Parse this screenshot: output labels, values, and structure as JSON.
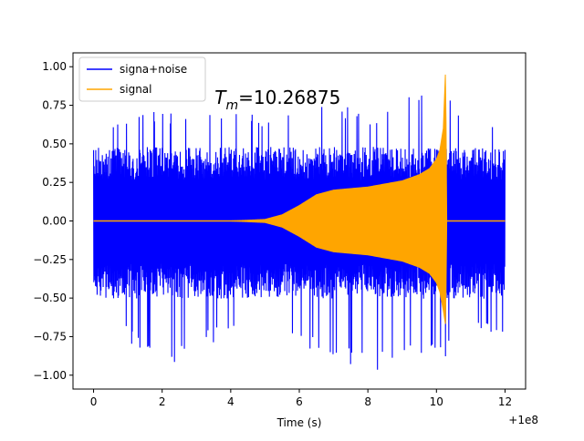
{
  "chart_data": {
    "type": "line",
    "title": "",
    "xlabel": "Time (s)",
    "ylabel": "",
    "x_offset_label": "+1e8",
    "xlim": [
      -0.6,
      12.6
    ],
    "ylim": [
      -1.09,
      1.09
    ],
    "x_ticks": [
      0,
      2,
      4,
      6,
      8,
      10,
      12
    ],
    "x_tick_labels": [
      "0",
      "2",
      "4",
      "6",
      "8",
      "10",
      "12"
    ],
    "y_ticks": [
      -1.0,
      -0.75,
      -0.5,
      -0.25,
      0.0,
      0.25,
      0.5,
      0.75,
      1.0
    ],
    "y_tick_labels": [
      "−1.00",
      "−0.75",
      "−0.50",
      "−0.25",
      "0.00",
      "0.25",
      "0.50",
      "0.75",
      "1.00"
    ],
    "grid": false,
    "legend_position": "upper-left",
    "annotation": {
      "symbol": "T",
      "subscript": "m",
      "value": "=10.26875",
      "x": 3.0,
      "y": 0.8
    },
    "series": [
      {
        "name": "signa+noise",
        "color": "#0000ff",
        "kind": "noise",
        "x_start": 0,
        "x_end": 12,
        "envelope": {
          "x": [
            0,
            1,
            2,
            3,
            4,
            5,
            6,
            7,
            8,
            9,
            10,
            11,
            12
          ],
          "upper": [
            0.63,
            0.68,
            0.75,
            0.69,
            0.74,
            0.67,
            0.82,
            0.78,
            0.73,
            0.79,
            0.86,
            0.73,
            0.7
          ],
          "lower": [
            -0.86,
            -0.79,
            -0.98,
            -0.82,
            -0.76,
            -0.78,
            -0.86,
            -0.88,
            -1.0,
            -0.9,
            -0.92,
            -0.78,
            -0.73
          ]
        },
        "bulk": 0.48
      },
      {
        "name": "signal",
        "color": "#ffa500",
        "kind": "chirp",
        "x": [
          0,
          4.0,
          5.0,
          5.5,
          6.0,
          6.5,
          7.0,
          8.0,
          9.0,
          9.5,
          9.8,
          10.0,
          10.1,
          10.2,
          10.26875,
          10.3,
          12.0
        ],
        "upper": [
          0,
          0.0,
          0.01,
          0.04,
          0.1,
          0.17,
          0.2,
          0.22,
          0.26,
          0.3,
          0.34,
          0.4,
          0.46,
          0.6,
          1.0,
          0.0,
          0.0
        ],
        "lower": [
          0,
          0.0,
          -0.01,
          -0.04,
          -0.1,
          -0.17,
          -0.2,
          -0.22,
          -0.26,
          -0.3,
          -0.34,
          -0.4,
          -0.46,
          -0.58,
          -0.68,
          0.0,
          0.0
        ]
      }
    ]
  }
}
